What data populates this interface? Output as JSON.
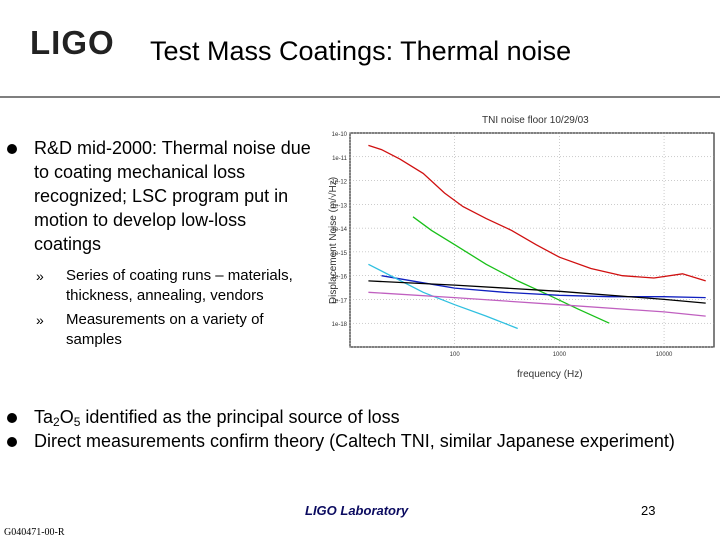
{
  "header": {
    "logo_text": "LIGO",
    "title": "Test Mass Coatings: Thermal noise"
  },
  "bullets_top": [
    {
      "text": "R&D mid-2000: Thermal noise due to coating mechanical loss recognized; LSC program put in motion to develop low-loss coatings",
      "subitems": [
        {
          "marker": "»",
          "text": "Series of coating runs – materials, thickness, annealing, vendors"
        },
        {
          "marker": "»",
          "text": "Measurements on a variety of samples"
        }
      ]
    }
  ],
  "bullets_bottom": [
    {
      "pre": "Ta",
      "sub1": "2",
      "mid": "O",
      "sub2": "5",
      "post": " identified as the principal source of loss"
    },
    {
      "text": "Direct measurements confirm theory (Caltech TNI, similar Japanese experiment)"
    }
  ],
  "footer": {
    "lab": "LIGO Laboratory",
    "page": "23",
    "doc_id": "G040471-00-R"
  },
  "chart_data": {
    "type": "line",
    "title": "TNI noise floor 10/29/03",
    "xlabel": "frequency (Hz)",
    "ylabel": "Displacement Noise (m/√Hz)",
    "xscale": "log",
    "yscale": "log",
    "y_tick_labels": [
      "1e-10",
      "1e-11",
      "1e-12",
      "1e-13",
      "1e-14",
      "1e-15",
      "1e-16",
      "1e-17",
      "1e-18"
    ],
    "x_tick_labels": [
      "100",
      "1000",
      "10000"
    ],
    "xlim": [
      10,
      30000
    ],
    "ylim": [
      1e-19,
      1e-10
    ],
    "grid": true,
    "series": [
      {
        "color": "#d01010",
        "x": [
          15,
          20,
          30,
          50,
          80,
          120,
          200,
          350,
          600,
          1000,
          2000,
          4000,
          8000,
          15000,
          25000
        ],
        "y": [
          3e-11,
          2e-11,
          8e-12,
          2e-12,
          3e-13,
          8e-14,
          2.5e-14,
          8e-15,
          2e-15,
          6e-16,
          2e-16,
          1e-16,
          8e-17,
          1.2e-16,
          6e-17
        ]
      },
      {
        "color": "#19c019",
        "x": [
          40,
          60,
          100,
          200,
          400,
          800,
          1500,
          3000
        ],
        "y": [
          3e-14,
          8e-15,
          2e-15,
          3e-16,
          6e-17,
          1.5e-17,
          4e-18,
          1e-18
        ]
      },
      {
        "color": "#1020c0",
        "x": [
          20,
          50,
          100,
          300,
          1000,
          3000,
          10000,
          25000
        ],
        "y": [
          1e-16,
          5e-17,
          3e-17,
          2e-17,
          1.5e-17,
          1.3e-17,
          1.3e-17,
          1.2e-17
        ]
      },
      {
        "color": "#30c0e0",
        "x": [
          15,
          50,
          100,
          200,
          400
        ],
        "y": [
          3e-16,
          2e-17,
          6e-18,
          2e-18,
          6e-19
        ]
      },
      {
        "color": "#000000",
        "x": [
          15,
          100,
          1000,
          10000,
          25000
        ],
        "y": [
          6e-17,
          4e-17,
          2.2e-17,
          1e-17,
          7e-18
        ]
      },
      {
        "color": "#c060c0",
        "x": [
          15,
          100,
          1000,
          10000,
          25000
        ],
        "y": [
          2e-17,
          1.2e-17,
          6e-18,
          3e-18,
          2e-18
        ]
      }
    ]
  }
}
